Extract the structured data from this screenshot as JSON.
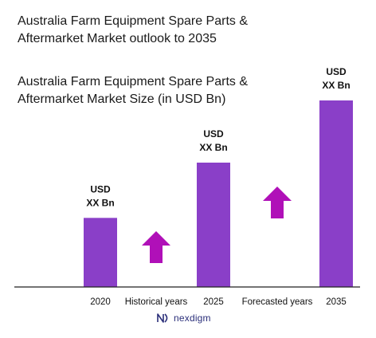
{
  "header": {
    "title": "Australia Farm Equipment Spare Parts &\nAftermarket Market outlook to 2035",
    "brand": "nexdigm",
    "brand_icon": "nexdigm-logo-icon"
  },
  "chart_data": {
    "type": "bar",
    "title": "Australia Farm Equipment Spare Parts &\nAftermarket Market Size (in USD Bn)",
    "categories": [
      "2020",
      "2025",
      "2035"
    ],
    "values": [
      1.0,
      1.8,
      2.7
    ],
    "value_labels": [
      [
        "USD",
        "XX Bn"
      ],
      [
        "USD",
        "XX Bn"
      ],
      [
        "USD",
        "XX Bn"
      ]
    ],
    "period_labels": [
      "Historical years",
      "Forecasted years"
    ],
    "arrows": [
      "up-arrow-icon",
      "up-arrow-icon"
    ],
    "xlabel": "",
    "ylabel": "",
    "ylim": [
      0,
      2.7
    ],
    "grid": false,
    "legend": "none",
    "colors": {
      "bar": "#8A3FC8",
      "arrow": "#B010B8",
      "axis": "#222222"
    }
  }
}
